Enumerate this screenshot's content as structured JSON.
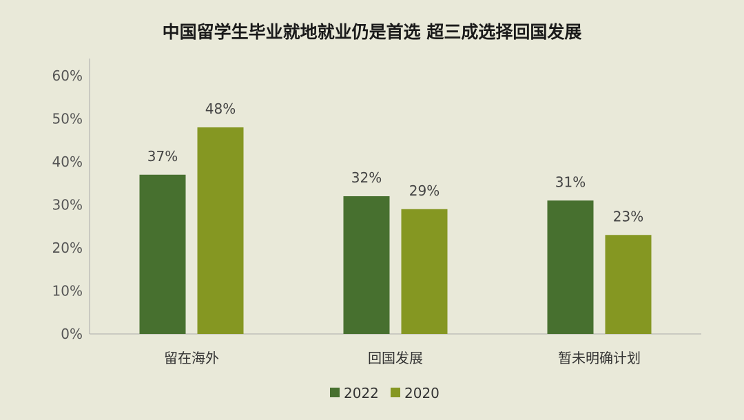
{
  "chart_data": {
    "type": "bar",
    "title": "中国留学生毕业就地就业仍是首选 超三成选择回国发展",
    "categories": [
      "留在海外",
      "回国发展",
      "暂未明确计划"
    ],
    "series": [
      {
        "name": "2022",
        "values": [
          37,
          32,
          31
        ],
        "labels": [
          "37%",
          "32%",
          "31%"
        ],
        "color": "#47702f"
      },
      {
        "name": "2020",
        "values": [
          48,
          29,
          23
        ],
        "labels": [
          "48%",
          "29%",
          "23%"
        ],
        "color": "#859722"
      }
    ],
    "ylim": [
      0,
      60
    ],
    "yticks": [
      0,
      10,
      20,
      30,
      40,
      50,
      60
    ],
    "ytick_labels": [
      "0%",
      "10%",
      "20%",
      "30%",
      "40%",
      "50%",
      "60%"
    ],
    "grid": false,
    "legend_position": "bottom-center",
    "colors": {
      "background": "#e9e9d9",
      "axis": "#aaaaaa"
    }
  }
}
